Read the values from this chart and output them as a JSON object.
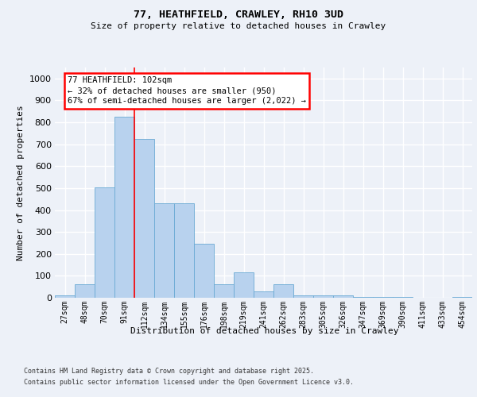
{
  "title1": "77, HEATHFIELD, CRAWLEY, RH10 3UD",
  "title2": "Size of property relative to detached houses in Crawley",
  "xlabel": "Distribution of detached houses by size in Crawley",
  "ylabel": "Number of detached properties",
  "categories": [
    "27sqm",
    "48sqm",
    "70sqm",
    "91sqm",
    "112sqm",
    "134sqm",
    "155sqm",
    "176sqm",
    "198sqm",
    "219sqm",
    "241sqm",
    "262sqm",
    "283sqm",
    "305sqm",
    "326sqm",
    "347sqm",
    "369sqm",
    "390sqm",
    "411sqm",
    "433sqm",
    "454sqm"
  ],
  "values": [
    10,
    60,
    505,
    825,
    725,
    430,
    430,
    245,
    60,
    115,
    30,
    60,
    10,
    10,
    10,
    5,
    5,
    2,
    0,
    0,
    2
  ],
  "bar_color": "#b8d2ee",
  "bar_edge_color": "#6aaad4",
  "annotation_line1": "77 HEATHFIELD: 102sqm",
  "annotation_line2": "← 32% of detached houses are smaller (950)",
  "annotation_line3": "67% of semi-detached houses are larger (2,022) →",
  "vline_bin_index": 3,
  "ylim_max": 1050,
  "yticks": [
    0,
    100,
    200,
    300,
    400,
    500,
    600,
    700,
    800,
    900,
    1000
  ],
  "footer1": "Contains HM Land Registry data © Crown copyright and database right 2025.",
  "footer2": "Contains public sector information licensed under the Open Government Licence v3.0.",
  "bg_color": "#edf1f8",
  "grid_color": "#ffffff"
}
